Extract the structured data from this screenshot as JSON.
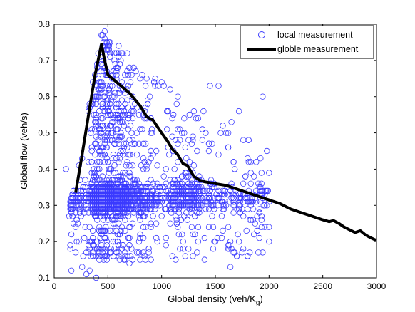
{
  "chart_data": {
    "type": "scatter",
    "xlabel": "Global density (veh/K",
    "xlabel_subscript": "g",
    "xlabel_close": ")",
    "ylabel": "Global flow (veh/s)",
    "xlim": [
      0,
      3000
    ],
    "ylim": [
      0.1,
      0.8
    ],
    "xticks": [
      0,
      500,
      1000,
      1500,
      2000,
      2500,
      3000
    ],
    "yticks": [
      0.1,
      0.2,
      0.3,
      0.4,
      0.5,
      0.6,
      0.7,
      0.8
    ],
    "grid": false,
    "legend_position": "top-right",
    "colors": {
      "scatter": "#3b3bff",
      "line": "#000000"
    },
    "scatter_style": "open circles, approx. 1500–2000 points densely packed",
    "series": [
      {
        "name": "local measurement",
        "kind": "scatter",
        "points": [
          [
            110,
            0.4
          ],
          [
            140,
            0.27
          ],
          [
            160,
            0.12
          ],
          [
            210,
            0.2
          ],
          [
            260,
            0.13
          ],
          [
            300,
            0.11
          ],
          [
            330,
            0.12
          ],
          [
            360,
            0.17
          ],
          [
            390,
            0.1
          ],
          [
            420,
            0.18
          ],
          [
            470,
            0.78
          ],
          [
            440,
            0.77
          ],
          [
            510,
            0.74
          ],
          [
            560,
            0.72
          ],
          [
            620,
            0.7
          ],
          [
            700,
            0.68
          ],
          [
            760,
            0.67
          ],
          [
            820,
            0.66
          ],
          [
            860,
            0.65
          ],
          [
            940,
            0.65
          ],
          [
            1000,
            0.64
          ],
          [
            1080,
            0.62
          ],
          [
            1150,
            0.6
          ],
          [
            1260,
            0.55
          ],
          [
            1320,
            0.54
          ],
          [
            1450,
            0.63
          ],
          [
            1530,
            0.63
          ],
          [
            1600,
            0.5
          ],
          [
            1650,
            0.53
          ],
          [
            1720,
            0.56
          ],
          [
            1800,
            0.43
          ],
          [
            1880,
            0.42
          ],
          [
            1940,
            0.6
          ],
          [
            1980,
            0.45
          ],
          [
            2000,
            0.2
          ],
          [
            1900,
            0.17
          ],
          [
            1760,
            0.18
          ],
          [
            1640,
            0.13
          ],
          [
            1500,
            0.2
          ],
          [
            1400,
            0.21
          ],
          [
            1200,
            0.18
          ],
          [
            900,
            0.15
          ],
          [
            700,
            0.14
          ],
          [
            600,
            0.16
          ],
          [
            800,
            0.21
          ]
        ]
      },
      {
        "name": "globle measurement",
        "kind": "line",
        "x": [
          200,
          260,
          320,
          380,
          440,
          470,
          500,
          540,
          600,
          700,
          800,
          860,
          920,
          1000,
          1060,
          1100,
          1150,
          1200,
          1240,
          1300,
          1350,
          1400,
          1500,
          1600,
          1700,
          1800,
          1900,
          2000,
          2100,
          2200,
          2300,
          2400,
          2500,
          2560,
          2600,
          2650,
          2700,
          2800,
          2850,
          2900,
          2950,
          3000
        ],
        "values": [
          0.335,
          0.44,
          0.55,
          0.66,
          0.745,
          0.7,
          0.66,
          0.65,
          0.635,
          0.61,
          0.575,
          0.545,
          0.535,
          0.5,
          0.475,
          0.455,
          0.44,
          0.415,
          0.41,
          0.38,
          0.37,
          0.365,
          0.36,
          0.355,
          0.345,
          0.335,
          0.325,
          0.315,
          0.305,
          0.29,
          0.28,
          0.27,
          0.26,
          0.255,
          0.258,
          0.25,
          0.24,
          0.225,
          0.23,
          0.218,
          0.21,
          0.203
        ]
      }
    ]
  }
}
